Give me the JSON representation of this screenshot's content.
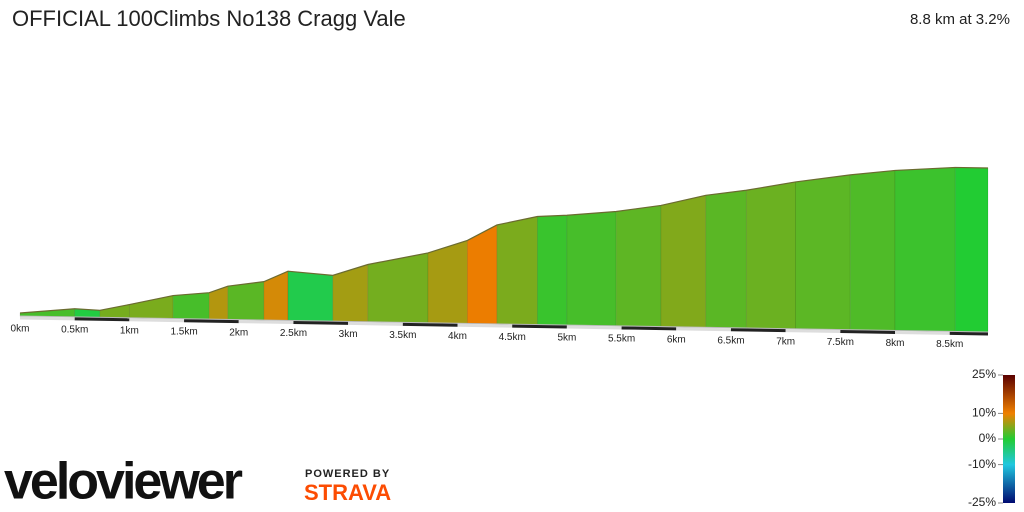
{
  "chart_data": {
    "type": "elevation-profile",
    "title": "OFFICIAL 100Climbs No138 Cragg Vale",
    "subtitle": "8.8 km at 3.2%",
    "x": [
      0,
      0.5,
      0.73,
      1.0,
      1.4,
      1.73,
      1.9,
      2.23,
      2.45,
      2.86,
      3.18,
      3.73,
      4.09,
      4.36,
      4.73,
      5.0,
      5.45,
      5.86,
      6.27,
      6.64,
      7.09,
      7.59,
      8.0,
      8.55,
      8.85
    ],
    "values": [
      155,
      164,
      162,
      173,
      190,
      196,
      208,
      217,
      236,
      230,
      250,
      272,
      295,
      323,
      339,
      342,
      350,
      362,
      381,
      391,
      407,
      421,
      430,
      437,
      437
    ],
    "xlim": [
      0,
      8.85
    ],
    "xticks": [
      {
        "value": 0,
        "label": "0km"
      },
      {
        "value": 0.5,
        "label": "0.5km"
      },
      {
        "value": 1,
        "label": "1km"
      },
      {
        "value": 1.5,
        "label": "1.5km"
      },
      {
        "value": 2,
        "label": "2km"
      },
      {
        "value": 2.5,
        "label": "2.5km"
      },
      {
        "value": 3,
        "label": "3km"
      },
      {
        "value": 3.5,
        "label": "3.5km"
      },
      {
        "value": 4,
        "label": "4km"
      },
      {
        "value": 4.5,
        "label": "4.5km"
      },
      {
        "value": 5,
        "label": "5km"
      },
      {
        "value": 5.5,
        "label": "5.5km"
      },
      {
        "value": 6,
        "label": "6km"
      },
      {
        "value": 6.5,
        "label": "6.5km"
      },
      {
        "value": 7,
        "label": "7km"
      },
      {
        "value": 7.5,
        "label": "7.5km"
      },
      {
        "value": 8,
        "label": "8km"
      },
      {
        "value": 8.5,
        "label": "8.5km"
      }
    ],
    "colorscale": {
      "ticks": [
        {
          "value": 25,
          "label": "25%"
        },
        {
          "value": 10,
          "label": "10%"
        },
        {
          "value": 0,
          "label": "0%"
        },
        {
          "value": -10,
          "label": "-10%"
        },
        {
          "value": -25,
          "label": "-25%"
        }
      ],
      "colors": [
        "#5a0000",
        "#f08000",
        "#22cc33",
        "#20c8e0",
        "#000a70"
      ]
    }
  },
  "branding": {
    "logo": "veloviewer",
    "powered_by": "POWERED BY",
    "strava": "STRAVA"
  }
}
